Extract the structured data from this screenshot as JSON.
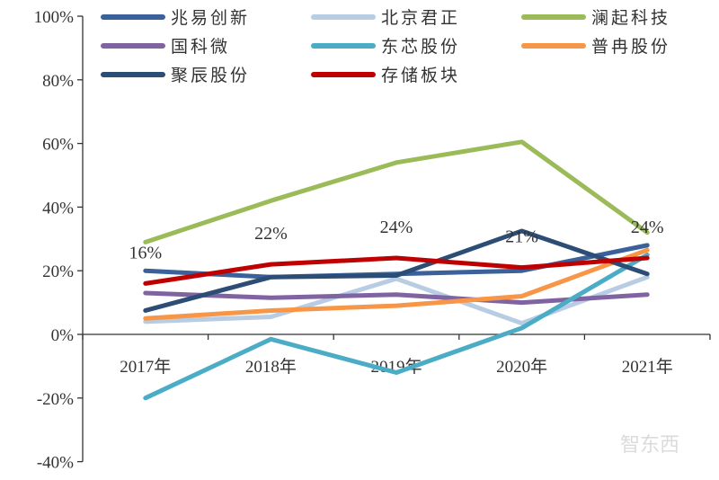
{
  "chart_data": {
    "type": "line",
    "title": "",
    "xlabel": "",
    "ylabel": "",
    "categories": [
      "2017年",
      "2018年",
      "2019年",
      "2020年",
      "2021年"
    ],
    "ylim": [
      -40,
      100
    ],
    "yticks": [
      "100%",
      "80%",
      "60%",
      "40%",
      "20%",
      "0%",
      "-20%",
      "-40%"
    ],
    "ytick_values": [
      100,
      80,
      60,
      40,
      20,
      0,
      -20,
      -40
    ],
    "grid": false,
    "legend_placement": "top",
    "series": [
      {
        "name": "兆易创新",
        "color": "#3a6199",
        "values": [
          20,
          18,
          19,
          20,
          28
        ]
      },
      {
        "name": "北京君正",
        "color": "#b8cce4",
        "values": [
          4,
          5.5,
          17.5,
          3.5,
          18
        ]
      },
      {
        "name": "澜起科技",
        "color": "#9bbb59",
        "values": [
          29,
          42,
          54,
          60.5,
          32
        ]
      },
      {
        "name": "国科微",
        "color": "#8064a2",
        "values": [
          13,
          11.5,
          12.5,
          10,
          12.5
        ]
      },
      {
        "name": "东芯股份",
        "color": "#4bacc6",
        "values": [
          -20,
          -1.5,
          -12,
          2,
          25
        ]
      },
      {
        "name": "普冉股份",
        "color": "#f79646",
        "values": [
          5,
          7.5,
          9,
          12,
          26.5
        ]
      },
      {
        "name": "聚辰股份",
        "color": "#2c4d75",
        "values": [
          7.5,
          18,
          18.5,
          32.5,
          19
        ]
      },
      {
        "name": "存储板块",
        "color": "#c00000",
        "values": [
          16,
          22,
          24,
          21,
          24
        ]
      }
    ],
    "data_labels": {
      "series": "存储板块",
      "labels": [
        "16%",
        "22%",
        "24%",
        "21%",
        "24%"
      ]
    }
  },
  "watermark": "智东西"
}
